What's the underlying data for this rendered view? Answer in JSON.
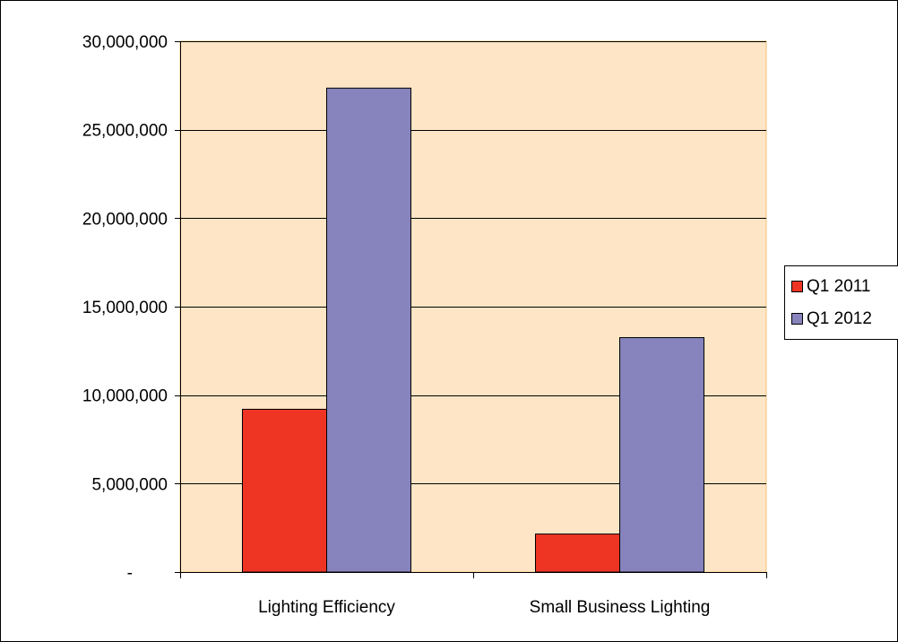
{
  "chart_data": {
    "type": "bar",
    "title": "",
    "xlabel": "",
    "ylabel": "",
    "categories": [
      "Lighting Efficiency",
      "Small Business Lighting"
    ],
    "series": [
      {
        "name": "Q1 2011",
        "color": "#ee3524",
        "values": [
          9200000,
          2150000
        ]
      },
      {
        "name": "Q1 2012",
        "color": "#8783bd",
        "values": [
          27350000,
          13250000
        ]
      }
    ],
    "ylim": [
      0,
      30000000
    ],
    "yticks": [
      0,
      5000000,
      10000000,
      15000000,
      20000000,
      25000000,
      30000000
    ],
    "ytick_labels": [
      "-",
      "5,000,000",
      "10,000,000",
      "15,000,000",
      "20,000,000",
      "25,000,000",
      "30,000,000"
    ],
    "grid": true,
    "legend_position": "right",
    "plot_background": "#fde5c5",
    "plot_border_color": "#f5c27a"
  }
}
